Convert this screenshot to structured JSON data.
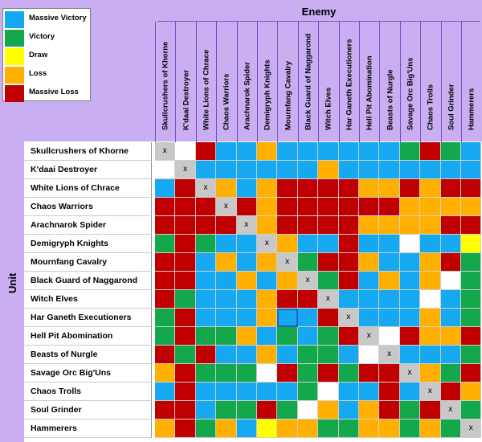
{
  "legend": [
    {
      "label": "Massive Victory",
      "color": "#16a8f0"
    },
    {
      "label": "Victory",
      "color": "#14a84c"
    },
    {
      "label": "Draw",
      "color": "#ffff00"
    },
    {
      "label": "Loss",
      "color": "#ffb000"
    },
    {
      "label": "Massive Loss",
      "color": "#c00000"
    }
  ],
  "enemy_title": "Enemy",
  "unit_title": "Unit",
  "chart_data": {
    "type": "heatmap",
    "x_title": "Enemy",
    "y_title": "Unit",
    "units": [
      "Skullcrushers of Khorne",
      "K'daai Destroyer",
      "White Lions of Chrace",
      "Chaos Warriors",
      "Arachnarok Spider",
      "Demigryph Knights",
      "Mournfang Cavalry",
      "Black Guard of Naggarond",
      "Witch Elves",
      "Har Ganeth Executioners",
      "Hell Pit Abomination",
      "Beasts of Nurgle",
      "Savage Orc Big'Uns",
      "Chaos Trolls",
      "Soul Grinder",
      "Hammerers"
    ],
    "enemies": [
      "Skullcrushers of Khorne",
      "K'daai Destroyer",
      "White Lions of Chrace",
      "Chaos Warriors",
      "Arachnarok Spider",
      "Demigryph Knights",
      "Mournfang Cavalry",
      "Black Guard of Naggarond",
      "Witch Elves",
      "Har Ganeth Executioners",
      "Hell Pit Abomination",
      "Beasts of Nurgle",
      "Savage Orc Big'Uns",
      "Chaos Trolls",
      "Soul Grinder",
      "Hammerers"
    ],
    "codes": {
      "MV": "Massive Victory",
      "V": "Victory",
      "D": "Draw",
      "L": "Loss",
      "ML": "Massive Loss",
      "W": "",
      "X": "x"
    },
    "colors": {
      "MV": "#16a8f0",
      "V": "#14a84c",
      "D": "#ffff00",
      "L": "#ffb000",
      "ML": "#c00000",
      "W": "#ffffff",
      "X": "#c8c8c8"
    },
    "matrix": [
      [
        "X",
        "W",
        "ML",
        "MV",
        "MV",
        "L",
        "MV",
        "MV",
        "MV",
        "MV",
        "MV",
        "MV",
        "V",
        "ML",
        "V",
        "MV"
      ],
      [
        "W",
        "X",
        "MV",
        "MV",
        "MV",
        "MV",
        "MV",
        "MV",
        "L",
        "MV",
        "MV",
        "MV",
        "MV",
        "MV",
        "MV",
        "MV"
      ],
      [
        "MV",
        "ML",
        "X",
        "L",
        "MV",
        "L",
        "ML",
        "ML",
        "ML",
        "ML",
        "L",
        "L",
        "ML",
        "L",
        "ML",
        "ML"
      ],
      [
        "ML",
        "ML",
        "ML",
        "X",
        "ML",
        "L",
        "ML",
        "ML",
        "ML",
        "ML",
        "ML",
        "ML",
        "L",
        "L",
        "L",
        "L"
      ],
      [
        "ML",
        "ML",
        "ML",
        "ML",
        "X",
        "L",
        "ML",
        "ML",
        "ML",
        "ML",
        "L",
        "L",
        "L",
        "L",
        "ML",
        "ML"
      ],
      [
        "V",
        "ML",
        "V",
        "MV",
        "MV",
        "X",
        "L",
        "MV",
        "MV",
        "ML",
        "MV",
        "MV",
        "W",
        "MV",
        "MV",
        "D"
      ],
      [
        "ML",
        "ML",
        "MV",
        "L",
        "MV",
        "L",
        "X",
        "V",
        "ML",
        "ML",
        "L",
        "MV",
        "MV",
        "L",
        "ML",
        "V"
      ],
      [
        "ML",
        "ML",
        "MV",
        "MV",
        "L",
        "MV",
        "L",
        "X",
        "V",
        "ML",
        "MV",
        "L",
        "MV",
        "L",
        "W",
        "V"
      ],
      [
        "ML",
        "V",
        "MV",
        "MV",
        "MV",
        "L",
        "ML",
        "ML",
        "X",
        "MV",
        "MV",
        "MV",
        "MV",
        "W",
        "MV",
        "V"
      ],
      [
        "V",
        "ML",
        "MV",
        "MV",
        "MV",
        "L",
        "MV",
        "MV",
        "ML",
        "X",
        "MV",
        "MV",
        "MV",
        "L",
        "MV",
        "V"
      ],
      [
        "V",
        "ML",
        "V",
        "V",
        "L",
        "MV",
        "V",
        "MV",
        "V",
        "ML",
        "X",
        "W",
        "ML",
        "L",
        "L",
        "ML"
      ],
      [
        "ML",
        "V",
        "ML",
        "MV",
        "MV",
        "L",
        "MV",
        "V",
        "V",
        "MV",
        "W",
        "X",
        "MV",
        "MV",
        "MV",
        "V"
      ],
      [
        "L",
        "ML",
        "V",
        "V",
        "V",
        "W",
        "ML",
        "V",
        "ML",
        "V",
        "ML",
        "ML",
        "X",
        "L",
        "V",
        "ML"
      ],
      [
        "MV",
        "ML",
        "MV",
        "MV",
        "MV",
        "MV",
        "MV",
        "V",
        "W",
        "MV",
        "MV",
        "ML",
        "MV",
        "X",
        "ML",
        "L"
      ],
      [
        "ML",
        "ML",
        "MV",
        "V",
        "V",
        "ML",
        "V",
        "W",
        "L",
        "MV",
        "L",
        "ML",
        "V",
        "ML",
        "X",
        "V"
      ],
      [
        "L",
        "ML",
        "V",
        "L",
        "MV",
        "D",
        "L",
        "L",
        "V",
        "V",
        "L",
        "L",
        "V",
        "L",
        "V",
        "X"
      ]
    ]
  }
}
